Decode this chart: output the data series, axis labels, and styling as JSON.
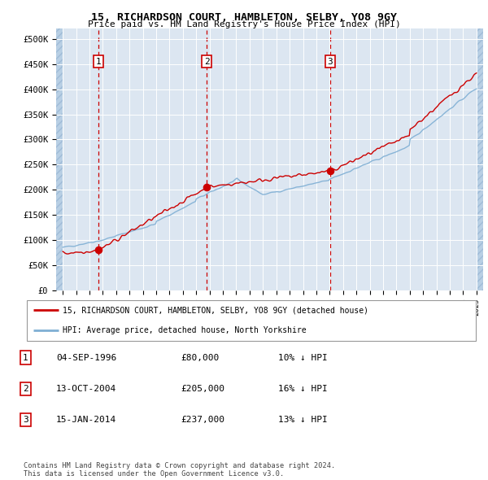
{
  "title": "15, RICHARDSON COURT, HAMBLETON, SELBY, YO8 9GY",
  "subtitle": "Price paid vs. HM Land Registry's House Price Index (HPI)",
  "legend_label_red": "15, RICHARDSON COURT, HAMBLETON, SELBY, YO8 9GY (detached house)",
  "legend_label_blue": "HPI: Average price, detached house, North Yorkshire",
  "sale_points": [
    {
      "date": 1996.67,
      "price": 80000,
      "label": "1"
    },
    {
      "date": 2004.79,
      "price": 205000,
      "label": "2"
    },
    {
      "date": 2014.04,
      "price": 237000,
      "label": "3"
    }
  ],
  "table_rows": [
    {
      "num": "1",
      "date": "04-SEP-1996",
      "price": "£80,000",
      "hpi": "10% ↓ HPI"
    },
    {
      "num": "2",
      "date": "13-OCT-2004",
      "price": "£205,000",
      "hpi": "16% ↓ HPI"
    },
    {
      "num": "3",
      "date": "15-JAN-2014",
      "price": "£237,000",
      "hpi": "13% ↓ HPI"
    }
  ],
  "footer": "Contains HM Land Registry data © Crown copyright and database right 2024.\nThis data is licensed under the Open Government Licence v3.0.",
  "ylim": [
    0,
    520000
  ],
  "xlim": [
    1993.5,
    2025.5
  ],
  "yticks": [
    0,
    50000,
    100000,
    150000,
    200000,
    250000,
    300000,
    350000,
    400000,
    450000,
    500000
  ],
  "ytick_labels": [
    "£0",
    "£50K",
    "£100K",
    "£150K",
    "£200K",
    "£250K",
    "£300K",
    "£350K",
    "£400K",
    "£450K",
    "£500K"
  ],
  "xtick_years": [
    1994,
    1995,
    1996,
    1997,
    1998,
    1999,
    2000,
    2001,
    2002,
    2003,
    2004,
    2005,
    2006,
    2007,
    2008,
    2009,
    2010,
    2011,
    2012,
    2013,
    2014,
    2015,
    2016,
    2017,
    2018,
    2019,
    2020,
    2021,
    2022,
    2023,
    2024,
    2025
  ],
  "background_color": "#dce6f1",
  "hatch_color": "#b8cfe4",
  "grid_color": "#ffffff",
  "red_line_color": "#cc0000",
  "blue_line_color": "#7fafd4",
  "marker_color": "#cc0000",
  "vline_color": "#cc0000",
  "box_edge_color": "#cc0000"
}
